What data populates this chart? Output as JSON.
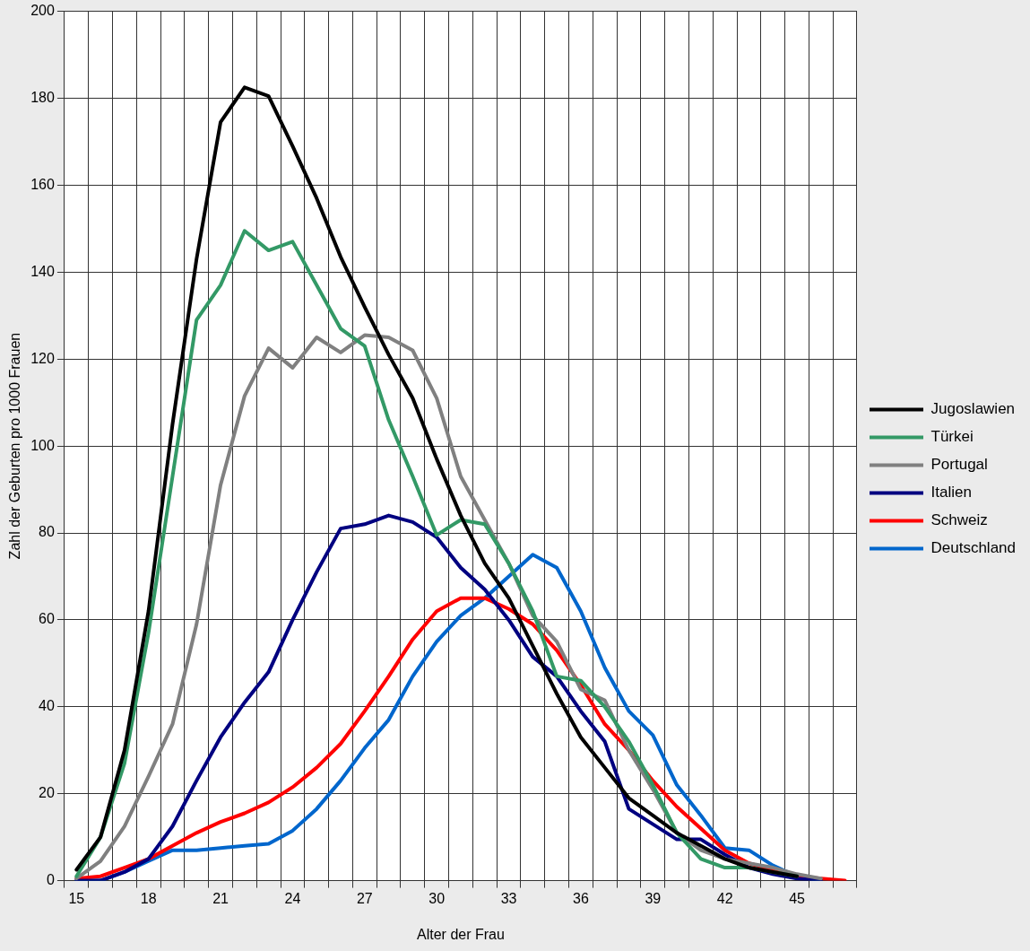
{
  "chart_data": {
    "type": "line",
    "xlabel": "Alter der Frau",
    "ylabel": "Zahl der Geburten pro 1000 Frauen",
    "categories": [
      "15",
      null,
      null,
      "18",
      null,
      null,
      "21",
      null,
      null,
      "24",
      null,
      null,
      "27",
      null,
      null,
      "30",
      null,
      null,
      "33",
      null,
      null,
      "36",
      null,
      null,
      "39",
      null,
      null,
      "42",
      null,
      null,
      "45",
      null,
      null
    ],
    "ylim": [
      0,
      200
    ],
    "yticks": [
      0,
      20,
      40,
      60,
      80,
      100,
      120,
      140,
      160,
      180,
      200
    ],
    "grid": true,
    "legend": "right",
    "marker": "none",
    "line_style": "solid",
    "series": [
      {
        "name": "Jugoslawien",
        "color": "#000000",
        "values": [
          2.5,
          10,
          30,
          62,
          105,
          143,
          174.5,
          182.5,
          180.5,
          169,
          157,
          143.5,
          132,
          121,
          111,
          97,
          84,
          73,
          65,
          54,
          43,
          33,
          26,
          19,
          15,
          11,
          8,
          5,
          3,
          2,
          1,
          null,
          null
        ]
      },
      {
        "name": "Türkei",
        "color": "#339966",
        "values": [
          1,
          10,
          27,
          57,
          93,
          129,
          137,
          149.5,
          145,
          147,
          137,
          127,
          123,
          106,
          93,
          79.5,
          83,
          82,
          73,
          62,
          47,
          46,
          40,
          32,
          22,
          11,
          5,
          3,
          3,
          2,
          1,
          null,
          null
        ]
      },
      {
        "name": "Portugal",
        "color": "#808080",
        "values": [
          0.5,
          4.5,
          12.5,
          24,
          36,
          59,
          91,
          111.5,
          122.5,
          118,
          125,
          121.5,
          125.5,
          125,
          122,
          111,
          93,
          83,
          73,
          61,
          55,
          44,
          41.5,
          30,
          21,
          11,
          7,
          5,
          4,
          3,
          1.5,
          0.5,
          null
        ]
      },
      {
        "name": "Italien",
        "color": "#000080",
        "values": [
          0,
          0,
          2,
          5,
          12.5,
          23,
          33,
          41,
          48,
          60,
          71,
          81,
          82,
          84,
          82.5,
          79,
          72,
          67,
          60,
          51.5,
          47,
          39,
          32,
          16.5,
          13,
          9.5,
          9.5,
          6,
          3,
          1.5,
          0.5,
          0,
          null
        ]
      },
      {
        "name": "Schweiz",
        "color": "#ff0000",
        "values": [
          0.5,
          1,
          3,
          5,
          8,
          11,
          13.5,
          15.5,
          18,
          21.5,
          26,
          31.5,
          39,
          47,
          55.5,
          62,
          65,
          65,
          62.5,
          59,
          53,
          45,
          36,
          30,
          23,
          17,
          12,
          7,
          4,
          2.5,
          1,
          0.5,
          0
        ]
      },
      {
        "name": "Deutschland",
        "color": "#0066cc",
        "values": [
          0,
          0,
          2,
          4.5,
          7,
          7,
          7.5,
          8,
          8.5,
          11.5,
          16.5,
          23,
          30.5,
          37,
          47,
          55,
          61,
          65,
          70,
          75,
          72,
          62,
          49,
          39,
          33.5,
          22,
          15,
          7.5,
          7,
          3.5,
          1,
          0,
          null
        ]
      }
    ]
  }
}
